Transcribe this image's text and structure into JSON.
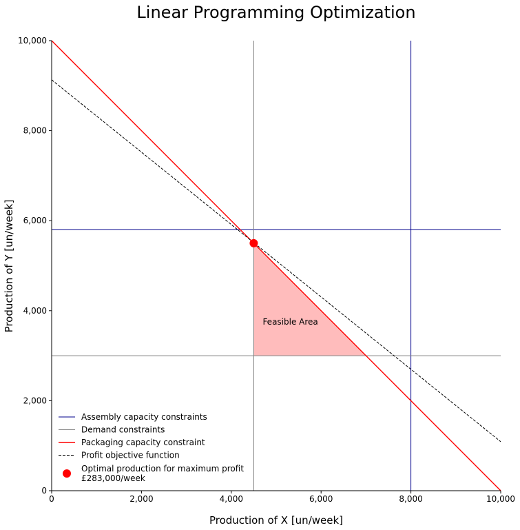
{
  "chart_data": {
    "type": "line",
    "title": "Linear Programming Optimization",
    "xlabel": "Production of X [un/week]",
    "ylabel": "Production of Y [un/week]",
    "xlim": [
      0,
      10000
    ],
    "ylim": [
      0,
      10000
    ],
    "xticks": [
      0,
      2000,
      4000,
      6000,
      8000,
      10000
    ],
    "xtick_labels": [
      "0",
      "2,000",
      "4,000",
      "6,000",
      "8,000",
      "10,000"
    ],
    "yticks": [
      0,
      2000,
      4000,
      6000,
      8000,
      10000
    ],
    "ytick_labels": [
      "0",
      "2,000",
      "4,000",
      "6,000",
      "8,000",
      "10,000"
    ],
    "grid": false,
    "legend_position": "lower-left",
    "series": [
      {
        "name": "Assembly capacity constraints",
        "color": "#00008b",
        "style": "solid",
        "segments": [
          [
            [
              0,
              5800
            ],
            [
              10000,
              5800
            ]
          ],
          [
            [
              8000,
              0
            ],
            [
              8000,
              10000
            ]
          ]
        ]
      },
      {
        "name": "Demand constraints",
        "color": "#808080",
        "style": "solid",
        "segments": [
          [
            [
              4500,
              0
            ],
            [
              4500,
              10000
            ]
          ],
          [
            [
              0,
              3000
            ],
            [
              10000,
              3000
            ]
          ]
        ]
      },
      {
        "name": "Packaging capacity constraint",
        "color": "#ff0000",
        "style": "solid",
        "segments": [
          [
            [
              0,
              10000
            ],
            [
              10000,
              0
            ]
          ]
        ]
      },
      {
        "name": "Profit objective function",
        "color": "#000000",
        "style": "dashed",
        "segments": [
          [
            [
              0,
              9130
            ],
            [
              10000,
              1090
            ]
          ]
        ]
      }
    ],
    "feasible_region": {
      "fill": "#ffbcbc",
      "polygon": [
        [
          4500,
          5500
        ],
        [
          7000,
          3000
        ],
        [
          4500,
          3000
        ]
      ]
    },
    "optimal_point": {
      "label": "Optimal production for maximum profit\n£283,000/week",
      "label_lines": [
        "Optimal production for maximum profit",
        "£283,000/week"
      ],
      "x": 4500,
      "y": 5500,
      "color": "#ff0000"
    },
    "annotations": [
      {
        "text": "Feasible Area",
        "x": 4700,
        "y": 3750
      }
    ]
  }
}
